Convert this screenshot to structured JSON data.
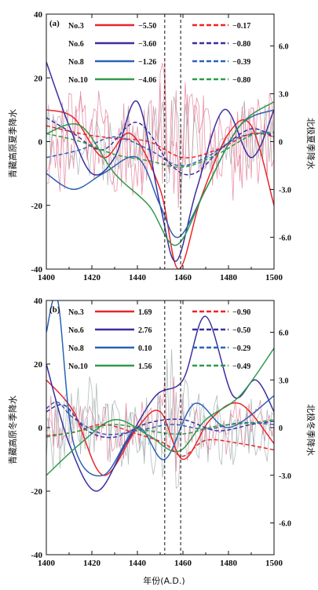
{
  "chart_data": [
    {
      "type": "line",
      "panel_label": "(a)",
      "xlim": [
        1400,
        1500
      ],
      "x_ticks": [
        1400,
        1420,
        1440,
        1460,
        1480,
        1500
      ],
      "ylim_left": [
        -40,
        40
      ],
      "y_ticks_left": [
        -40,
        -20,
        0,
        20,
        40
      ],
      "ylabel_left": "青藏高原夏季降水",
      "ylim_right": [
        -8.0,
        8.0
      ],
      "y_ticks_right": [
        "-6.0",
        "-3.0",
        "0",
        "3.0",
        "6.0"
      ],
      "ylabel_right": "北极夏季降水",
      "vlines": [
        1452,
        1459
      ],
      "legend": [
        {
          "name": "No.3",
          "value_solid": "−5.50",
          "value_dashed": "−0.17",
          "color": "#e8262b"
        },
        {
          "name": "No.6",
          "value_solid": "−3.60",
          "value_dashed": "−0.80",
          "color": "#3a2f9e"
        },
        {
          "name": "No.8",
          "value_solid": "−1.26",
          "value_dashed": "−0.39",
          "color": "#2a62b5"
        },
        {
          "name": "No.10",
          "value_solid": "−4.06",
          "value_dashed": "−0.80",
          "color": "#2e9a48"
        }
      ],
      "background_series": [
        {
          "color": "#e0728d",
          "amp": 16,
          "seed": 11
        },
        {
          "color": "#e0728d",
          "amp": 13,
          "seed": 23
        },
        {
          "color": "#9aa5a8",
          "amp": 11,
          "seed": 37
        }
      ],
      "smooth_series": [
        {
          "name": "No.3",
          "style": "solid",
          "color": "#e8262b",
          "x": [
            1400,
            1412,
            1425,
            1437,
            1450,
            1458,
            1468,
            1480,
            1490,
            1500
          ],
          "y": [
            2.0,
            1.5,
            -1.0,
            0.5,
            -3.0,
            -8.0,
            -3.5,
            0.5,
            1.0,
            -4.0
          ]
        },
        {
          "name": "No.6",
          "style": "solid",
          "color": "#3a2f9e",
          "x": [
            1400,
            1410,
            1420,
            1430,
            1440,
            1450,
            1457,
            1466,
            1478,
            1490,
            1500
          ],
          "y": [
            5.0,
            1.0,
            -2.0,
            -1.0,
            2.5,
            -4.0,
            -7.5,
            -3.0,
            2.0,
            -1.0,
            2.0
          ]
        },
        {
          "name": "No.8",
          "style": "solid",
          "color": "#2a62b5",
          "x": [
            1400,
            1412,
            1425,
            1440,
            1450,
            1458,
            1470,
            1485,
            1500
          ],
          "y": [
            -2.0,
            -3.0,
            -2.0,
            -1.0,
            -4.0,
            -6.0,
            -3.0,
            1.0,
            2.0
          ]
        },
        {
          "name": "No.10",
          "style": "solid",
          "color": "#2e9a48",
          "x": [
            1400,
            1415,
            1430,
            1445,
            1457,
            1470,
            1485,
            1500
          ],
          "y": [
            0.5,
            1.0,
            -2.0,
            -4.0,
            -6.5,
            -3.0,
            1.0,
            2.5
          ]
        },
        {
          "name": "No.3",
          "style": "dashed",
          "color": "#e8262b",
          "x": [
            1400,
            1415,
            1430,
            1445,
            1460,
            1475,
            1490,
            1500
          ],
          "y": [
            1.0,
            0.5,
            0.2,
            0.0,
            -1.0,
            -0.5,
            0.5,
            0.3
          ]
        },
        {
          "name": "No.6",
          "style": "dashed",
          "color": "#3a2f9e",
          "x": [
            1400,
            1412,
            1425,
            1440,
            1455,
            1465,
            1478,
            1490,
            1500
          ],
          "y": [
            1.5,
            0.5,
            -0.5,
            1.2,
            -1.5,
            -2.0,
            -0.3,
            0.8,
            0.3
          ]
        },
        {
          "name": "No.8",
          "style": "dashed",
          "color": "#2a62b5",
          "x": [
            1400,
            1415,
            1430,
            1445,
            1458,
            1470,
            1485,
            1500
          ],
          "y": [
            -1.0,
            -0.5,
            0.3,
            -0.5,
            -1.5,
            -1.0,
            0.3,
            0.5
          ]
        },
        {
          "name": "No.10",
          "style": "dashed",
          "color": "#2e9a48",
          "x": [
            1400,
            1415,
            1430,
            1445,
            1460,
            1475,
            1490,
            1500
          ],
          "y": [
            0.5,
            0.0,
            -0.8,
            -1.2,
            -1.6,
            -0.8,
            0.4,
            0.6
          ]
        }
      ]
    },
    {
      "type": "line",
      "panel_label": "(b)",
      "xlim": [
        1400,
        1500
      ],
      "x_ticks": [
        1400,
        1420,
        1440,
        1460,
        1480,
        1500
      ],
      "xlabel": "年份(A.D.)",
      "ylim_left": [
        -40,
        40
      ],
      "y_ticks_left": [
        -40,
        -20,
        0,
        20,
        40
      ],
      "ylabel_left": "青藏高原冬季降水",
      "ylim_right": [
        -8.0,
        8.0
      ],
      "y_ticks_right": [
        "-6.0",
        "-3.0",
        "0",
        "3.0",
        "6.0"
      ],
      "ylabel_right": "北极冬季降水",
      "vlines": [
        1452,
        1459
      ],
      "legend": [
        {
          "name": "No.3",
          "value_solid": "1.69",
          "value_dashed": "−0.90",
          "color": "#e8262b"
        },
        {
          "name": "No.6",
          "value_solid": "2.76",
          "value_dashed": "−0.50",
          "color": "#3a2f9e"
        },
        {
          "name": "No.8",
          "value_solid": "0.10",
          "value_dashed": "−0.29",
          "color": "#2a62b5"
        },
        {
          "name": "No.10",
          "value_solid": "1.56",
          "value_dashed": "−0.49",
          "color": "#2e9a48"
        }
      ],
      "background_series": [
        {
          "color": "#9aa5a8",
          "amp": 13,
          "seed": 51
        },
        {
          "color": "#9aa5a8",
          "amp": 10,
          "seed": 63
        },
        {
          "color": "#e0728d",
          "amp": 9,
          "seed": 77
        }
      ],
      "smooth_series": [
        {
          "name": "No.3",
          "style": "solid",
          "color": "#e8262b",
          "x": [
            1400,
            1412,
            1425,
            1440,
            1450,
            1460,
            1472,
            1485,
            1500
          ],
          "y": [
            3.0,
            1.0,
            -3.0,
            0.0,
            1.0,
            -2.0,
            0.5,
            1.5,
            -1.0
          ]
        },
        {
          "name": "No.6",
          "style": "solid",
          "color": "#3a2f9e",
          "x": [
            1400,
            1410,
            1422,
            1435,
            1448,
            1460,
            1470,
            1482,
            1492,
            1500
          ],
          "y": [
            4.0,
            -1.0,
            -4.0,
            -1.0,
            2.0,
            3.0,
            7.0,
            2.0,
            3.0,
            1.0
          ]
        },
        {
          "name": "No.8",
          "style": "solid",
          "color": "#2a62b5",
          "x": [
            1400,
            1405,
            1412,
            1425,
            1440,
            1452,
            1465,
            1480,
            1500
          ],
          "y": [
            6.0,
            8.0,
            -1.0,
            -3.0,
            0.0,
            -2.0,
            1.5,
            0.0,
            2.0
          ]
        },
        {
          "name": "No.10",
          "style": "solid",
          "color": "#2e9a48",
          "x": [
            1400,
            1415,
            1430,
            1445,
            1458,
            1470,
            1485,
            1500
          ],
          "y": [
            -3.0,
            -1.0,
            0.5,
            -0.5,
            -1.5,
            0.5,
            2.0,
            5.0
          ]
        },
        {
          "name": "No.3",
          "style": "dashed",
          "color": "#e8262b",
          "x": [
            1400,
            1412,
            1425,
            1440,
            1452,
            1460,
            1470,
            1485,
            1500
          ],
          "y": [
            -0.5,
            -0.3,
            0.2,
            -0.4,
            -1.0,
            -1.8,
            -0.8,
            -1.0,
            -1.4
          ]
        },
        {
          "name": "No.6",
          "style": "dashed",
          "color": "#3a2f9e",
          "x": [
            1400,
            1408,
            1418,
            1430,
            1445,
            1460,
            1475,
            1490,
            1500
          ],
          "y": [
            1.0,
            1.4,
            -0.2,
            -0.6,
            0.3,
            0.5,
            -0.2,
            0.2,
            0.4
          ]
        },
        {
          "name": "No.8",
          "style": "dashed",
          "color": "#2a62b5",
          "x": [
            1400,
            1405,
            1412,
            1425,
            1440,
            1455,
            1470,
            1485,
            1500
          ],
          "y": [
            1.2,
            1.6,
            0.6,
            -0.4,
            -0.2,
            0.2,
            -0.1,
            0.3,
            0.2
          ]
        },
        {
          "name": "No.10",
          "style": "dashed",
          "color": "#2e9a48",
          "x": [
            1400,
            1415,
            1430,
            1445,
            1460,
            1475,
            1490,
            1500
          ],
          "y": [
            -0.6,
            -0.2,
            0.2,
            -0.2,
            -0.4,
            0.1,
            0.3,
            0.5
          ]
        }
      ]
    }
  ]
}
